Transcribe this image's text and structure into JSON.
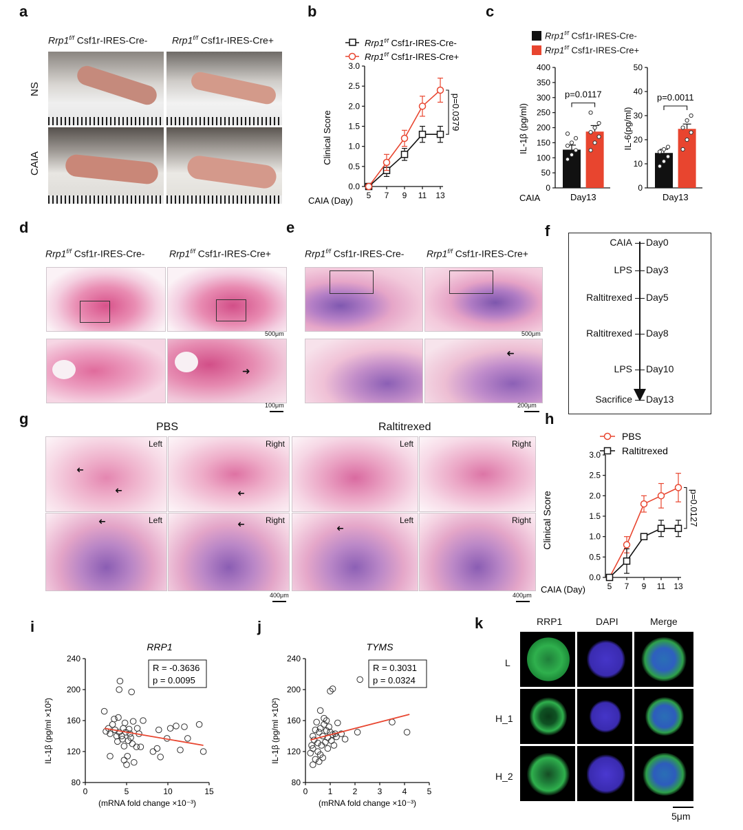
{
  "panels": {
    "a": "a",
    "b": "b",
    "c": "c",
    "d": "d",
    "e": "e",
    "f": "f",
    "g": "g",
    "h": "h",
    "i": "i",
    "j": "j",
    "k": "k"
  },
  "genotype": {
    "gene": "Rrp1",
    "sup": "f/f",
    "cre_neg": " Csf1r-IRES-Cre-",
    "cre_pos": " Csf1r-IRES-Cre+"
  },
  "panel_a": {
    "row1": "NS",
    "row2": "CAIA"
  },
  "colors": {
    "red": "#e8452f",
    "black": "#111111"
  },
  "chart_data": [
    {
      "id": "b",
      "type": "line",
      "ylabel": "Clinical Score",
      "xlabel_prefix": "CAIA (Day)",
      "x": [
        5,
        7,
        9,
        11,
        13
      ],
      "yticks": [
        "0.0",
        "0.5",
        "1.0",
        "1.5",
        "2.0",
        "2.5",
        "3.0"
      ],
      "ylim": [
        0,
        3.0
      ],
      "series": [
        {
          "name": "Rrp1f/f Csf1r-IRES-Cre-",
          "color": "#111111",
          "marker": "square",
          "values": [
            0,
            0.4,
            0.8,
            1.3,
            1.3
          ],
          "err": [
            0.05,
            0.15,
            0.15,
            0.2,
            0.2
          ]
        },
        {
          "name": "Rrp1f/f Csf1r-IRES-Cre+",
          "color": "#e8452f",
          "marker": "circle",
          "values": [
            0,
            0.6,
            1.2,
            2.0,
            2.4
          ],
          "err": [
            0.05,
            0.2,
            0.2,
            0.25,
            0.3
          ]
        }
      ],
      "pvalue": "p=0.0379"
    },
    {
      "id": "c1",
      "type": "bar",
      "ylabel": "IL-1β (pg/ml)",
      "category": "Day13",
      "axis_label": "CAIA",
      "yticks": [
        "0",
        "50",
        "100",
        "150",
        "200",
        "250",
        "300",
        "350",
        "400"
      ],
      "ylim": [
        0,
        400
      ],
      "bars": [
        {
          "name": "Rrp1f/f Csf1r-IRES-Cre-",
          "value": 127,
          "err": 15,
          "color": "#111111"
        },
        {
          "name": "Rrp1f/f Csf1r-IRES-Cre+",
          "value": 187,
          "err": 20,
          "color": "#e8452f"
        }
      ],
      "points": [
        [
          95,
          110,
          125,
          140,
          150,
          165,
          180
        ],
        [
          125,
          150,
          170,
          185,
          200,
          215,
          250
        ]
      ],
      "pvalue": "p=0.0117"
    },
    {
      "id": "c2",
      "type": "bar",
      "ylabel": "IL-6(pg/ml)",
      "category": "Day13",
      "yticks": [
        "0",
        "10",
        "20",
        "30",
        "40",
        "50"
      ],
      "ylim": [
        0,
        50
      ],
      "bars": [
        {
          "name": "Rrp1f/f Csf1r-IRES-Cre-",
          "value": 14.5,
          "err": 1.5,
          "color": "#111111"
        },
        {
          "name": "Rrp1f/f Csf1r-IRES-Cre+",
          "value": 24.5,
          "err": 2,
          "color": "#e8452f"
        }
      ],
      "points": [
        [
          9,
          11,
          13,
          15,
          16,
          17
        ],
        [
          16,
          20,
          23,
          25,
          28,
          30
        ]
      ],
      "pvalue": "p=0.0011"
    },
    {
      "id": "h",
      "type": "line",
      "ylabel": "Clinical Score",
      "xlabel_prefix": "CAIA (Day)",
      "x": [
        5,
        7,
        9,
        11,
        13
      ],
      "yticks": [
        "0.0",
        "0.5",
        "1.0",
        "1.5",
        "2.0",
        "2.5",
        "3.0"
      ],
      "ylim": [
        0,
        3.0
      ],
      "series": [
        {
          "name": "PBS",
          "color": "#e8452f",
          "marker": "circle",
          "values": [
            0,
            0.8,
            1.8,
            2.0,
            2.2
          ],
          "err": [
            0.05,
            0.2,
            0.2,
            0.3,
            0.35
          ]
        },
        {
          "name": "Raltitrexed",
          "color": "#111111",
          "marker": "square",
          "values": [
            0,
            0.4,
            1.0,
            1.2,
            1.2
          ],
          "err": [
            0.05,
            0.3,
            0.05,
            0.2,
            0.2
          ]
        }
      ],
      "pvalue": "p=0.0127"
    },
    {
      "id": "i",
      "type": "scatter",
      "title": "RRP1",
      "ylabel": "IL-1β (pg/ml ×10²)",
      "xlabel": "(mRNA fold change ×10⁻³)",
      "xticks": [
        "0",
        "5",
        "10",
        "15"
      ],
      "xlim": [
        0,
        15
      ],
      "yticks": [
        "80",
        "120",
        "160",
        "200",
        "240"
      ],
      "ylim": [
        80,
        240
      ],
      "R": "R = -0.3636",
      "p": "p = 0.0095",
      "fit": [
        [
          2.3,
          150
        ],
        [
          14.3,
          128
        ]
      ],
      "points": [
        [
          2.3,
          172
        ],
        [
          2.5,
          146
        ],
        [
          2.8,
          150
        ],
        [
          3.0,
          143
        ],
        [
          3.0,
          114
        ],
        [
          3.3,
          155
        ],
        [
          3.5,
          162
        ],
        [
          3.6,
          148
        ],
        [
          3.8,
          140
        ],
        [
          3.9,
          133
        ],
        [
          4.0,
          164
        ],
        [
          4.1,
          145
        ],
        [
          4.1,
          200
        ],
        [
          4.2,
          211
        ],
        [
          4.4,
          140
        ],
        [
          4.5,
          136
        ],
        [
          4.6,
          150
        ],
        [
          4.7,
          127
        ],
        [
          4.7,
          109
        ],
        [
          4.8,
          157
        ],
        [
          4.9,
          145
        ],
        [
          5.0,
          103
        ],
        [
          5.1,
          114
        ],
        [
          5.2,
          134
        ],
        [
          5.3,
          149
        ],
        [
          5.4,
          143
        ],
        [
          5.5,
          138
        ],
        [
          5.6,
          197
        ],
        [
          5.7,
          130
        ],
        [
          5.8,
          159
        ],
        [
          5.9,
          106
        ],
        [
          6.2,
          126
        ],
        [
          6.3,
          150
        ],
        [
          6.5,
          143
        ],
        [
          6.7,
          126
        ],
        [
          7.0,
          160
        ],
        [
          8.2,
          120
        ],
        [
          8.7,
          124
        ],
        [
          8.9,
          148
        ],
        [
          9.1,
          113
        ],
        [
          9.9,
          137
        ],
        [
          10.3,
          150
        ],
        [
          11.0,
          153
        ],
        [
          11.5,
          122
        ],
        [
          12.0,
          152
        ],
        [
          12.4,
          137
        ],
        [
          13.8,
          155
        ],
        [
          14.3,
          120
        ]
      ]
    },
    {
      "id": "j",
      "type": "scatter",
      "title": "TYMS",
      "ylabel": "IL-1β (pg/ml ×10²)",
      "xlabel": "(mRNA fold change ×10⁻³)",
      "xticks": [
        "0",
        "1",
        "2",
        "3",
        "4",
        "5"
      ],
      "xlim": [
        0,
        5
      ],
      "yticks": [
        "80",
        "120",
        "160",
        "200",
        "240"
      ],
      "ylim": [
        80,
        240
      ],
      "R": "R = 0.3031",
      "p": "p = 0.0324",
      "fit": [
        [
          0.2,
          135
        ],
        [
          4.2,
          168
        ]
      ],
      "points": [
        [
          0.2,
          118
        ],
        [
          0.25,
          128
        ],
        [
          0.3,
          140
        ],
        [
          0.3,
          103
        ],
        [
          0.35,
          135
        ],
        [
          0.4,
          148
        ],
        [
          0.4,
          110
        ],
        [
          0.45,
          158
        ],
        [
          0.5,
          131
        ],
        [
          0.5,
          120
        ],
        [
          0.55,
          145
        ],
        [
          0.55,
          107
        ],
        [
          0.6,
          173
        ],
        [
          0.6,
          150
        ],
        [
          0.65,
          128
        ],
        [
          0.7,
          140
        ],
        [
          0.7,
          112
        ],
        [
          0.75,
          155
        ],
        [
          0.75,
          163
        ],
        [
          0.8,
          132
        ],
        [
          0.85,
          147
        ],
        [
          0.9,
          138
        ],
        [
          0.9,
          124
        ],
        [
          0.95,
          152
        ],
        [
          1.0,
          145
        ],
        [
          1.0,
          198
        ],
        [
          1.05,
          134
        ],
        [
          1.1,
          201
        ],
        [
          1.1,
          142
        ],
        [
          1.2,
          143
        ],
        [
          1.25,
          139
        ],
        [
          1.3,
          157
        ],
        [
          1.45,
          143
        ],
        [
          1.6,
          136
        ],
        [
          2.1,
          145
        ],
        [
          2.2,
          213
        ],
        [
          3.5,
          158
        ],
        [
          4.1,
          145
        ],
        [
          0.3,
          124
        ],
        [
          0.6,
          116
        ],
        [
          0.85,
          160
        ],
        [
          1.15,
          128
        ]
      ]
    }
  ],
  "panel_d": {
    "scale_top": "500μm",
    "scale_bottom": "100μm"
  },
  "panel_e": {
    "scale_top": "500μm",
    "scale_bottom": "200μm"
  },
  "panel_f": {
    "events": [
      {
        "left": "CAIA",
        "right": "Day0"
      },
      {
        "left": "LPS",
        "right": "Day3"
      },
      {
        "left": "Raltitrexed",
        "right": "Day5"
      },
      {
        "left": "Raltitrexed",
        "right": "Day8"
      },
      {
        "left": "LPS",
        "right": "Day10"
      },
      {
        "left": "Sacrifice",
        "right": "Day13"
      }
    ]
  },
  "panel_g": {
    "group1": "PBS",
    "group2": "Raltitrexed",
    "left": "Left",
    "right": "Right",
    "scale": "400μm"
  },
  "panel_k": {
    "cols": [
      "RRP1",
      "DAPI",
      "Merge"
    ],
    "rows": [
      "L",
      "H_1",
      "H_2"
    ],
    "scale": "5μm"
  }
}
